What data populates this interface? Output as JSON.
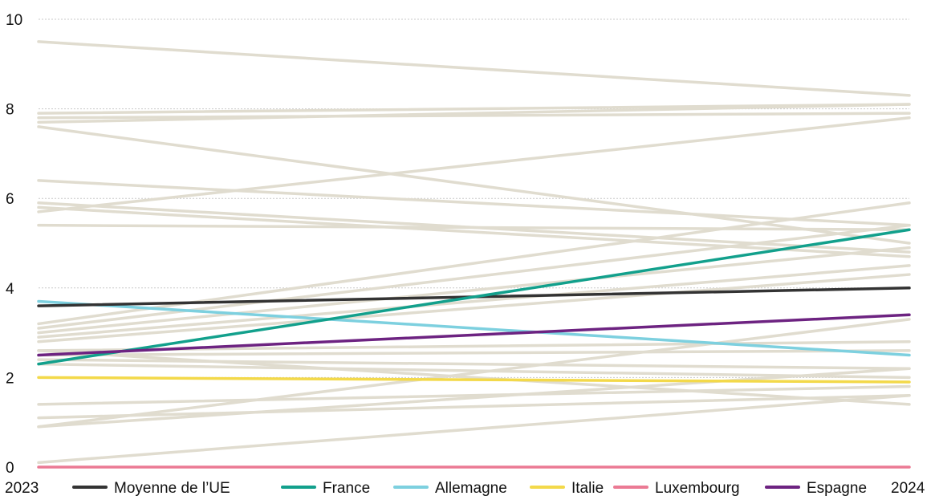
{
  "chart_data": {
    "type": "line",
    "x": [
      "2023",
      "2024"
    ],
    "ylim": [
      0,
      10
    ],
    "y_ticks": [
      "0",
      "2",
      "4",
      "6",
      "8",
      "10"
    ],
    "grid": true,
    "legend_position": "bottom",
    "background_series": [
      {
        "values": [
          9.5,
          8.3
        ]
      },
      {
        "values": [
          7.9,
          8.1
        ]
      },
      {
        "values": [
          7.8,
          7.9
        ]
      },
      {
        "values": [
          7.7,
          8.1
        ]
      },
      {
        "values": [
          7.6,
          5.0
        ]
      },
      {
        "values": [
          6.4,
          5.4
        ]
      },
      {
        "values": [
          5.9,
          4.8
        ]
      },
      {
        "values": [
          5.8,
          4.7
        ]
      },
      {
        "values": [
          5.7,
          7.8
        ]
      },
      {
        "values": [
          5.4,
          5.3
        ]
      },
      {
        "values": [
          3.2,
          5.9
        ]
      },
      {
        "values": [
          3.1,
          5.4
        ]
      },
      {
        "values": [
          3.0,
          4.9
        ]
      },
      {
        "values": [
          2.9,
          4.5
        ]
      },
      {
        "values": [
          2.8,
          4.3
        ]
      },
      {
        "values": [
          2.6,
          2.8
        ]
      },
      {
        "values": [
          2.5,
          2.6
        ]
      },
      {
        "values": [
          2.4,
          2.2
        ]
      },
      {
        "values": [
          2.3,
          2.0
        ]
      },
      {
        "values": [
          1.4,
          1.8
        ]
      },
      {
        "values": [
          1.1,
          1.6
        ]
      },
      {
        "values": [
          0.9,
          3.3
        ]
      },
      {
        "values": [
          0.9,
          2.2
        ]
      },
      {
        "values": [
          2.6,
          1.4
        ]
      },
      {
        "values": [
          0.1,
          1.6
        ]
      }
    ],
    "series": [
      {
        "name": "Moyenne de l’UE",
        "values": [
          3.6,
          4.0
        ],
        "color": "#333333"
      },
      {
        "name": "France",
        "values": [
          2.3,
          5.3
        ],
        "color": "#12a08c"
      },
      {
        "name": "Allemagne",
        "values": [
          3.7,
          2.5
        ],
        "color": "#7dd0df"
      },
      {
        "name": "Italie",
        "values": [
          2.0,
          1.9
        ],
        "color": "#f3d94a"
      },
      {
        "name": "Luxembourg",
        "values": [
          0.0,
          0.0
        ],
        "color": "#eb7a94"
      },
      {
        "name": "Espagne",
        "values": [
          2.5,
          3.4
        ],
        "color": "#6d2381"
      }
    ],
    "background_color": "#e0dccf"
  }
}
